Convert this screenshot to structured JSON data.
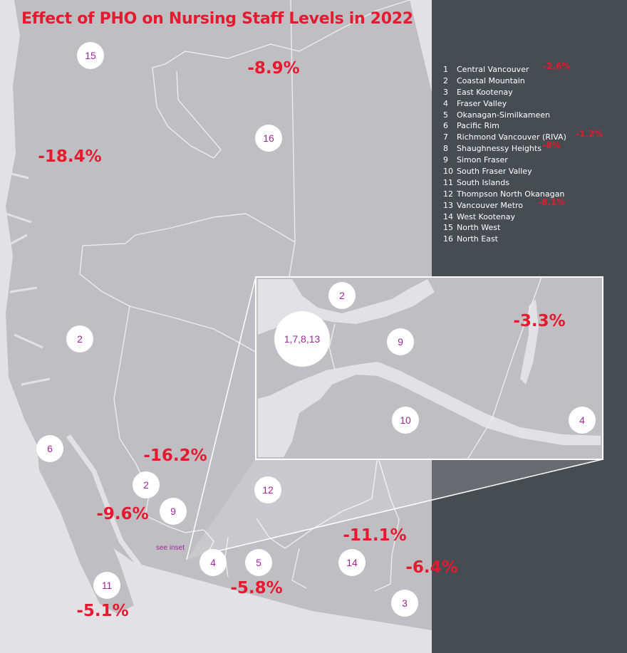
{
  "title": "Effect of PHO on Nursing Staff Levels in 2022",
  "legend": [
    {
      "num": "1",
      "name": "Central Vancouver",
      "pct": "-2.6%"
    },
    {
      "num": "2",
      "name": "Coastal Mountain",
      "pct": ""
    },
    {
      "num": "3",
      "name": "East Kootenay",
      "pct": ""
    },
    {
      "num": "4",
      "name": "Fraser Valley",
      "pct": ""
    },
    {
      "num": "5",
      "name": "Okanagan-Similkameen",
      "pct": ""
    },
    {
      "num": "6",
      "name": "Pacific Rim",
      "pct": ""
    },
    {
      "num": "7",
      "name": "Richmond Vancouver (RIVA)",
      "pct": "-1.2%"
    },
    {
      "num": "8",
      "name": "Shaughnessy Heights",
      "pct": "-8%"
    },
    {
      "num": "9",
      "name": "Simon Fraser",
      "pct": ""
    },
    {
      "num": "10",
      "name": "South Fraser Valley",
      "pct": ""
    },
    {
      "num": "11",
      "name": "South Islands",
      "pct": ""
    },
    {
      "num": "12",
      "name": "Thompson North Okanagan",
      "pct": ""
    },
    {
      "num": "13",
      "name": "Vancouver Metro",
      "pct": "-8.1%"
    },
    {
      "num": "14",
      "name": "West Kootenay",
      "pct": ""
    },
    {
      "num": "15",
      "name": "North West",
      "pct": ""
    },
    {
      "num": "16",
      "name": "North East",
      "pct": ""
    }
  ],
  "region_markers": [
    "15",
    "16",
    "2",
    "6",
    "2",
    "9",
    "12",
    "4",
    "5",
    "14",
    "3",
    "11"
  ],
  "inset_markers": [
    "1,7,8,13",
    "2",
    "9",
    "10",
    "4"
  ],
  "see_inset": "see inset",
  "map_labels": {
    "north_east": "-8.9%",
    "north_west": "-18.4%",
    "coastal_mountain": "-16.2%",
    "simon_fraser": "-9.6%",
    "west_kootenay": "-11.1%",
    "east_kootenay": "-6.4%",
    "okanagan_similkameen": "-5.8%",
    "south_islands": "-5.1%",
    "fraser_valley_inset": "-3.3%"
  },
  "colors": {
    "land": "#bebec3",
    "water": "#e2e2e6",
    "legend_panel": "#474b52",
    "accent_red": "#e6192e",
    "marker_text": "#a0289a"
  }
}
